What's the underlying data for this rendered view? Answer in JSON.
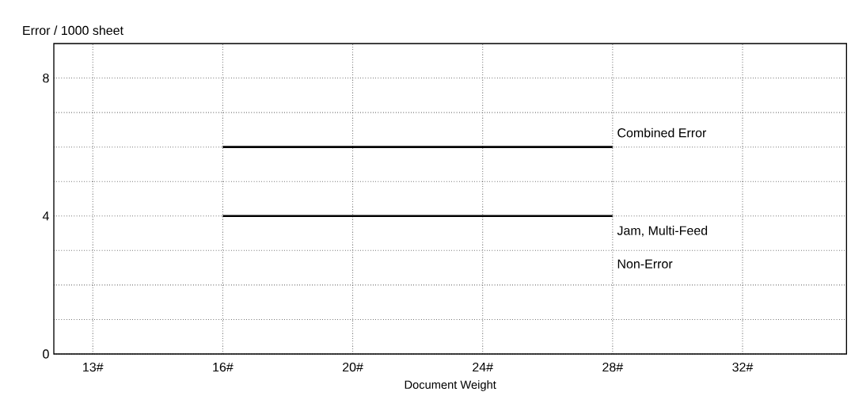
{
  "chart_data": {
    "type": "line",
    "xlabel": "Document Weight",
    "ylabel": "Error / 1000 sheet",
    "categories": [
      "13#",
      "16#",
      "20#",
      "24#",
      "28#",
      "32#"
    ],
    "series": [
      {
        "color": "#000000",
        "values": [
          null,
          6,
          6,
          6,
          6,
          null
        ]
      },
      {
        "color": "#000000",
        "values": [
          null,
          4,
          4,
          4,
          4,
          null
        ]
      }
    ],
    "ylim": [
      0,
      9
    ],
    "yticks": [
      0,
      {
        "value": 1,
        "label": null
      },
      {
        "value": 2,
        "label": null
      },
      {
        "value": 3,
        "label": null
      },
      4,
      {
        "value": 5,
        "label": null
      },
      {
        "value": 6,
        "label": null
      },
      {
        "value": 7,
        "label": null
      },
      8
    ],
    "grid": true,
    "marker": "none",
    "line_style": "solid",
    "annotations": [
      "Combined Error",
      "Jam, Multi-Feed",
      "Non-Error"
    ]
  }
}
